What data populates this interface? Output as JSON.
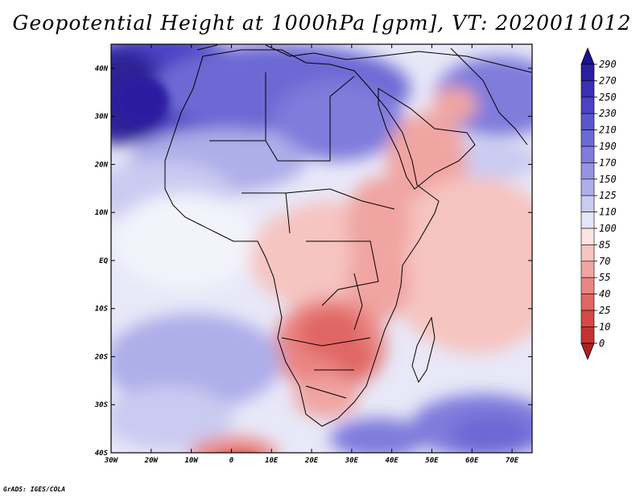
{
  "title": "Geopotential Height at 1000hPa [gpm], VT: 2020011012",
  "credit": "GrADS: IGES/COLA",
  "map": {
    "lat_ticks": [
      "40N",
      "30N",
      "20N",
      "10N",
      "EQ",
      "10S",
      "20S",
      "30S",
      "40S"
    ],
    "lon_ticks": [
      "30W",
      "20W",
      "10W",
      "0",
      "10E",
      "20E",
      "30E",
      "40E",
      "50E",
      "60E",
      "70E"
    ],
    "lon_range": [
      -30,
      75
    ],
    "lat_range": [
      -40,
      45
    ]
  },
  "colorbar": {
    "levels": [
      "290",
      "270",
      "250",
      "230",
      "210",
      "190",
      "170",
      "150",
      "125",
      "110",
      "100",
      "85",
      "70",
      "55",
      "40",
      "25",
      "10",
      "0"
    ],
    "colors": [
      "#2a1fa0",
      "#3a30b4",
      "#4b42c4",
      "#5c56cc",
      "#6d69d4",
      "#7f7cdc",
      "#9593e2",
      "#aeaee9",
      "#cacbf1",
      "#e4e5f8",
      "#fbe4e2",
      "#f6c4c1",
      "#f0a5a2",
      "#e98683",
      "#e06664",
      "#d54846",
      "#c53331"
    ],
    "top_color": "#1a1290",
    "bottom_color": "#b02020"
  },
  "colors": {
    "high": "#4b42c4",
    "mid": "#ffffff",
    "low": "#d54846"
  }
}
